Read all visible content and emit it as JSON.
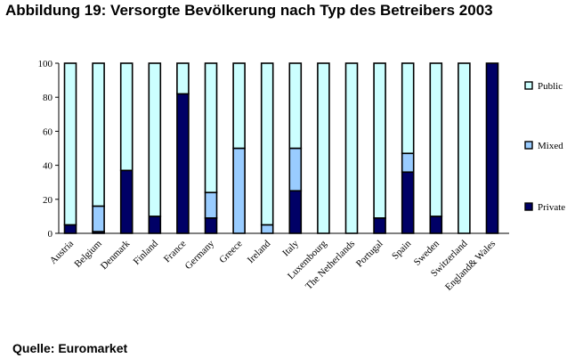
{
  "header": {
    "title": "Abbildung 19: Versorgte Bevölkerung nach Typ des Betreibers 2003"
  },
  "footer": {
    "source": "Quelle: Euromarket"
  },
  "chart_data": {
    "type": "bar",
    "stacked": true,
    "categories": [
      "Austria",
      "Belgium",
      "Denmark",
      "Finland",
      "France",
      "Germany",
      "Greece",
      "Ireland",
      "Italy",
      "Luxembourg",
      "The Netherlands",
      "Portugal",
      "Spain",
      "Sweden",
      "Switzerland",
      "England& Wales"
    ],
    "series": [
      {
        "name": "Private",
        "color": "#000066",
        "values": [
          5,
          1,
          37,
          10,
          82,
          9,
          0,
          0,
          25,
          0,
          0,
          9,
          36,
          10,
          0,
          100
        ]
      },
      {
        "name": "Mixed",
        "color": "#99ccff",
        "values": [
          0,
          15,
          0,
          0,
          0,
          15,
          50,
          5,
          25,
          0,
          0,
          0,
          11,
          0,
          0,
          0
        ]
      },
      {
        "name": "Public",
        "color": "#ccffff",
        "values": [
          95,
          84,
          63,
          90,
          18,
          76,
          50,
          95,
          50,
          100,
          100,
          91,
          53,
          90,
          100,
          0
        ]
      }
    ],
    "ylim": [
      0,
      100
    ],
    "yticks": [
      0,
      20,
      40,
      60,
      80,
      100
    ],
    "legend_position": "right",
    "legend_order": [
      "Public",
      "Mixed",
      "Private"
    ],
    "grid": false
  }
}
